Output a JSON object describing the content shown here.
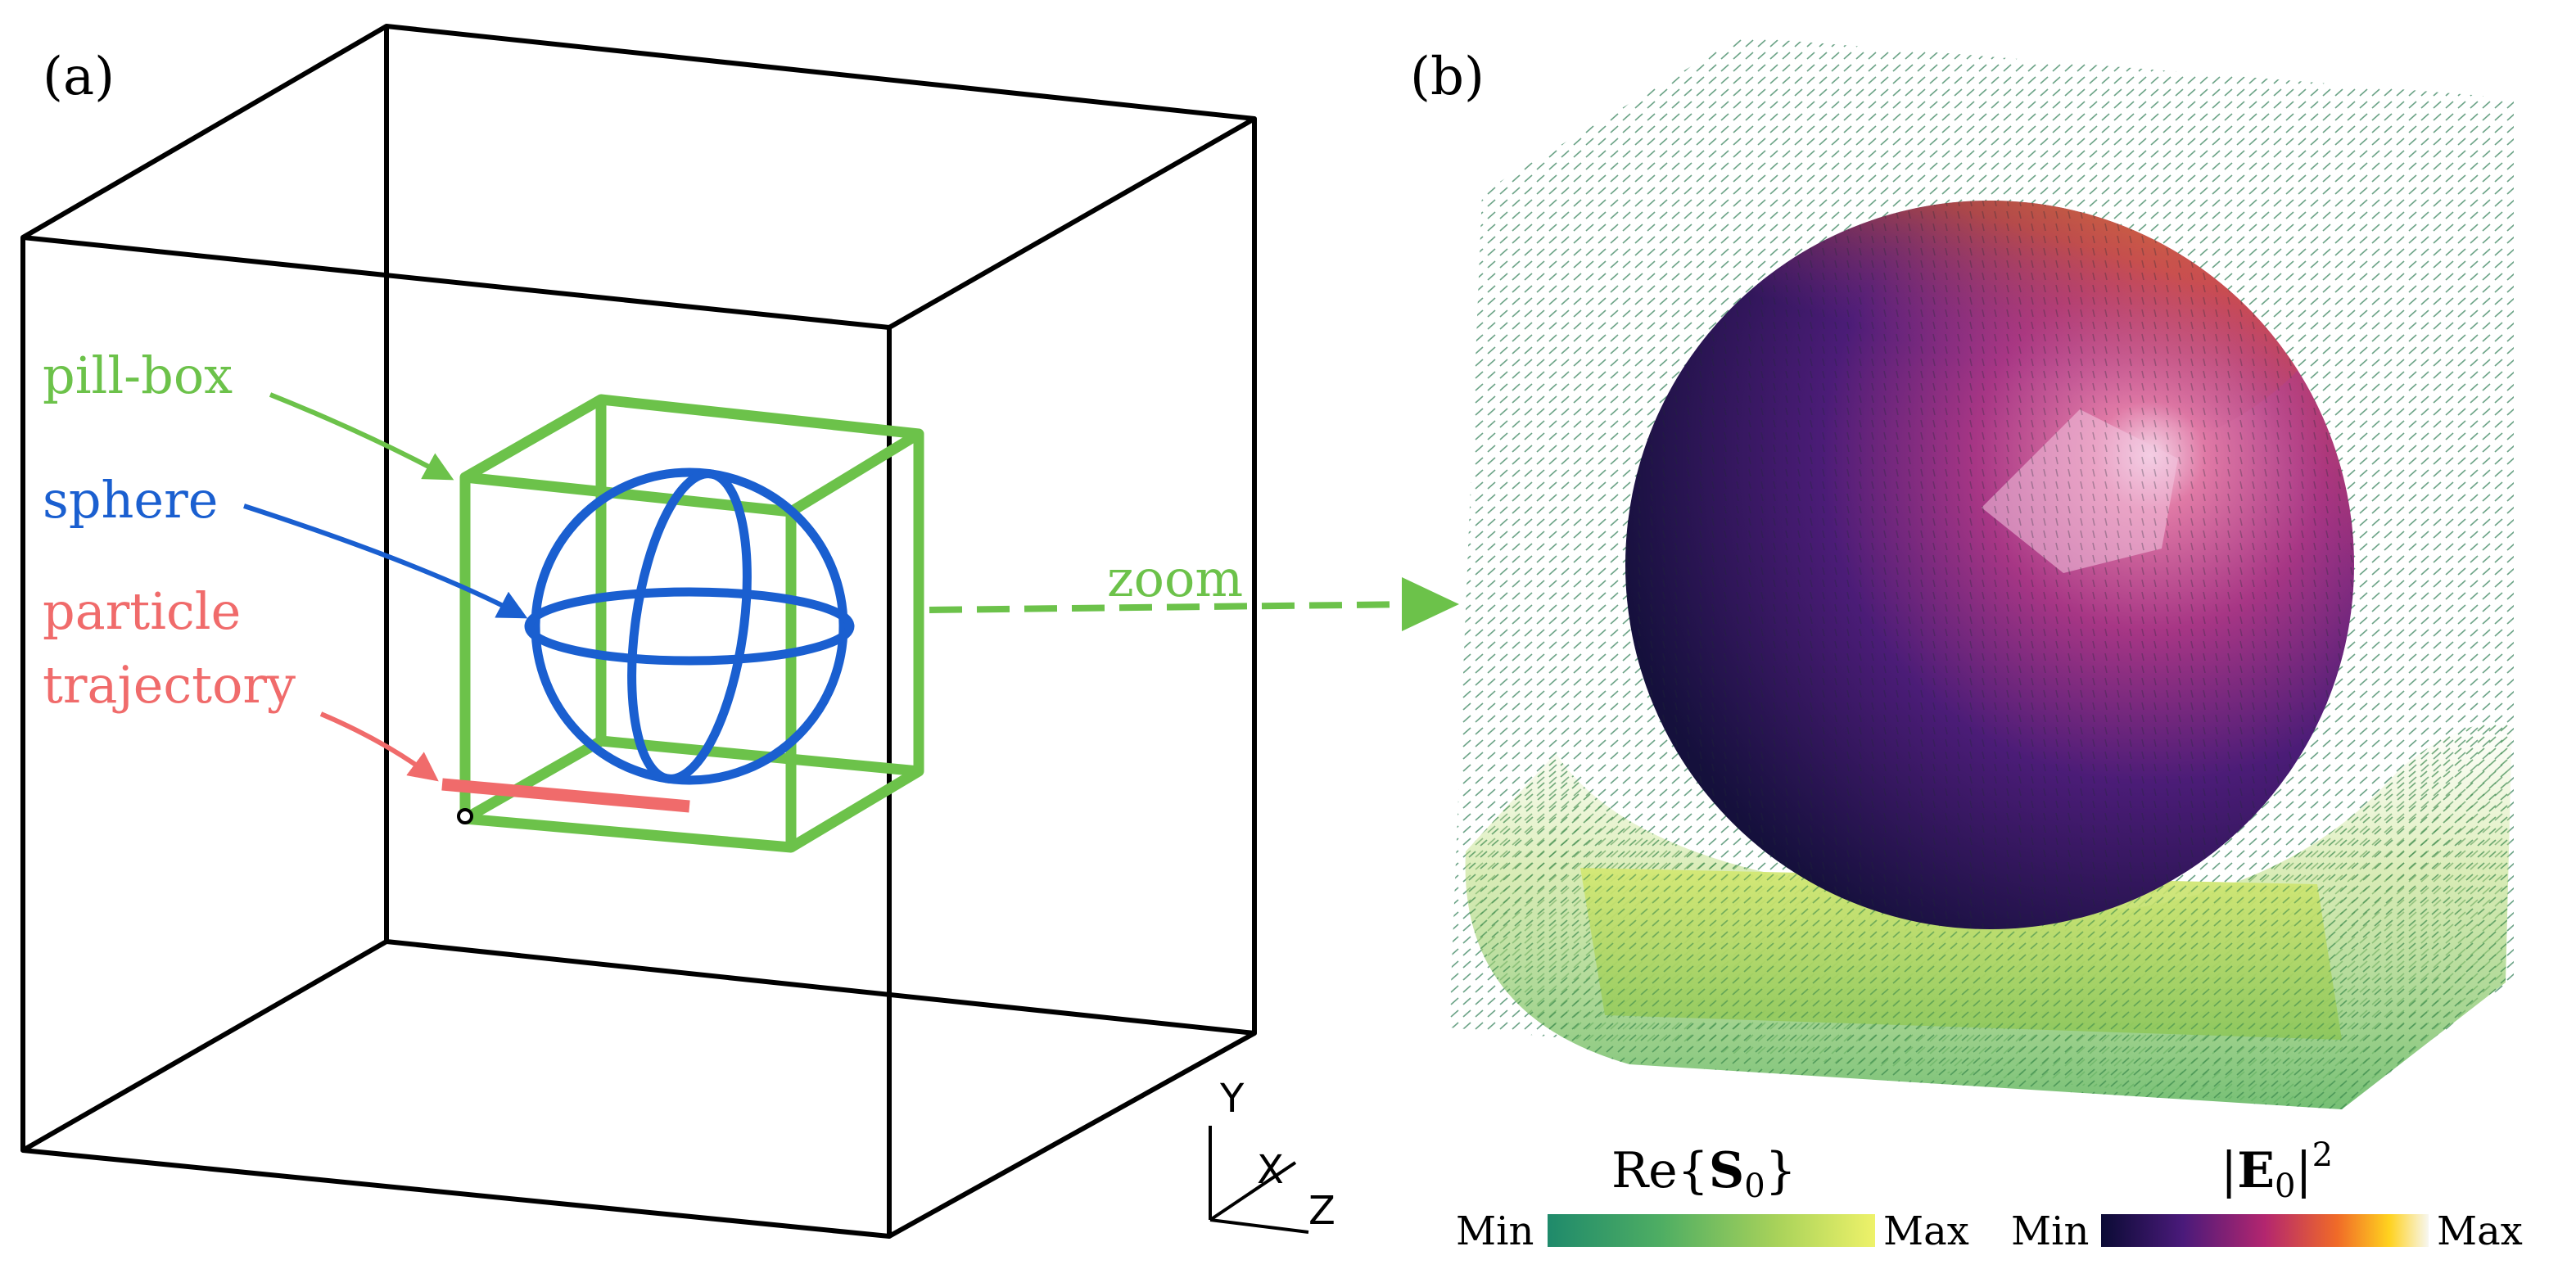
{
  "panel_a": {
    "label": "(a)",
    "labels": {
      "pillbox": "pill-box",
      "sphere": "sphere",
      "particle_line1": "particle",
      "particle_line2": "trajectory"
    },
    "axes": {
      "y": "Y",
      "x": "X",
      "z": "Z"
    }
  },
  "panel_b": {
    "label": "(b)",
    "zoom": "zoom",
    "colorbars": {
      "poynting": {
        "title_prefix": "Re{",
        "title_symbol": "S",
        "title_sub": "0",
        "title_suffix": "}",
        "min": "Min",
        "max": "Max"
      },
      "efield": {
        "title_prefix": "|",
        "title_symbol": "E",
        "title_sub": "0",
        "title_suffix": "|",
        "title_sup": "2",
        "min": "Min",
        "max": "Max"
      }
    }
  },
  "colors": {
    "pillbox": "#6cc24a",
    "sphere": "#1a5fd0",
    "trajectory": "#f06b6b",
    "frame": "#000000"
  }
}
